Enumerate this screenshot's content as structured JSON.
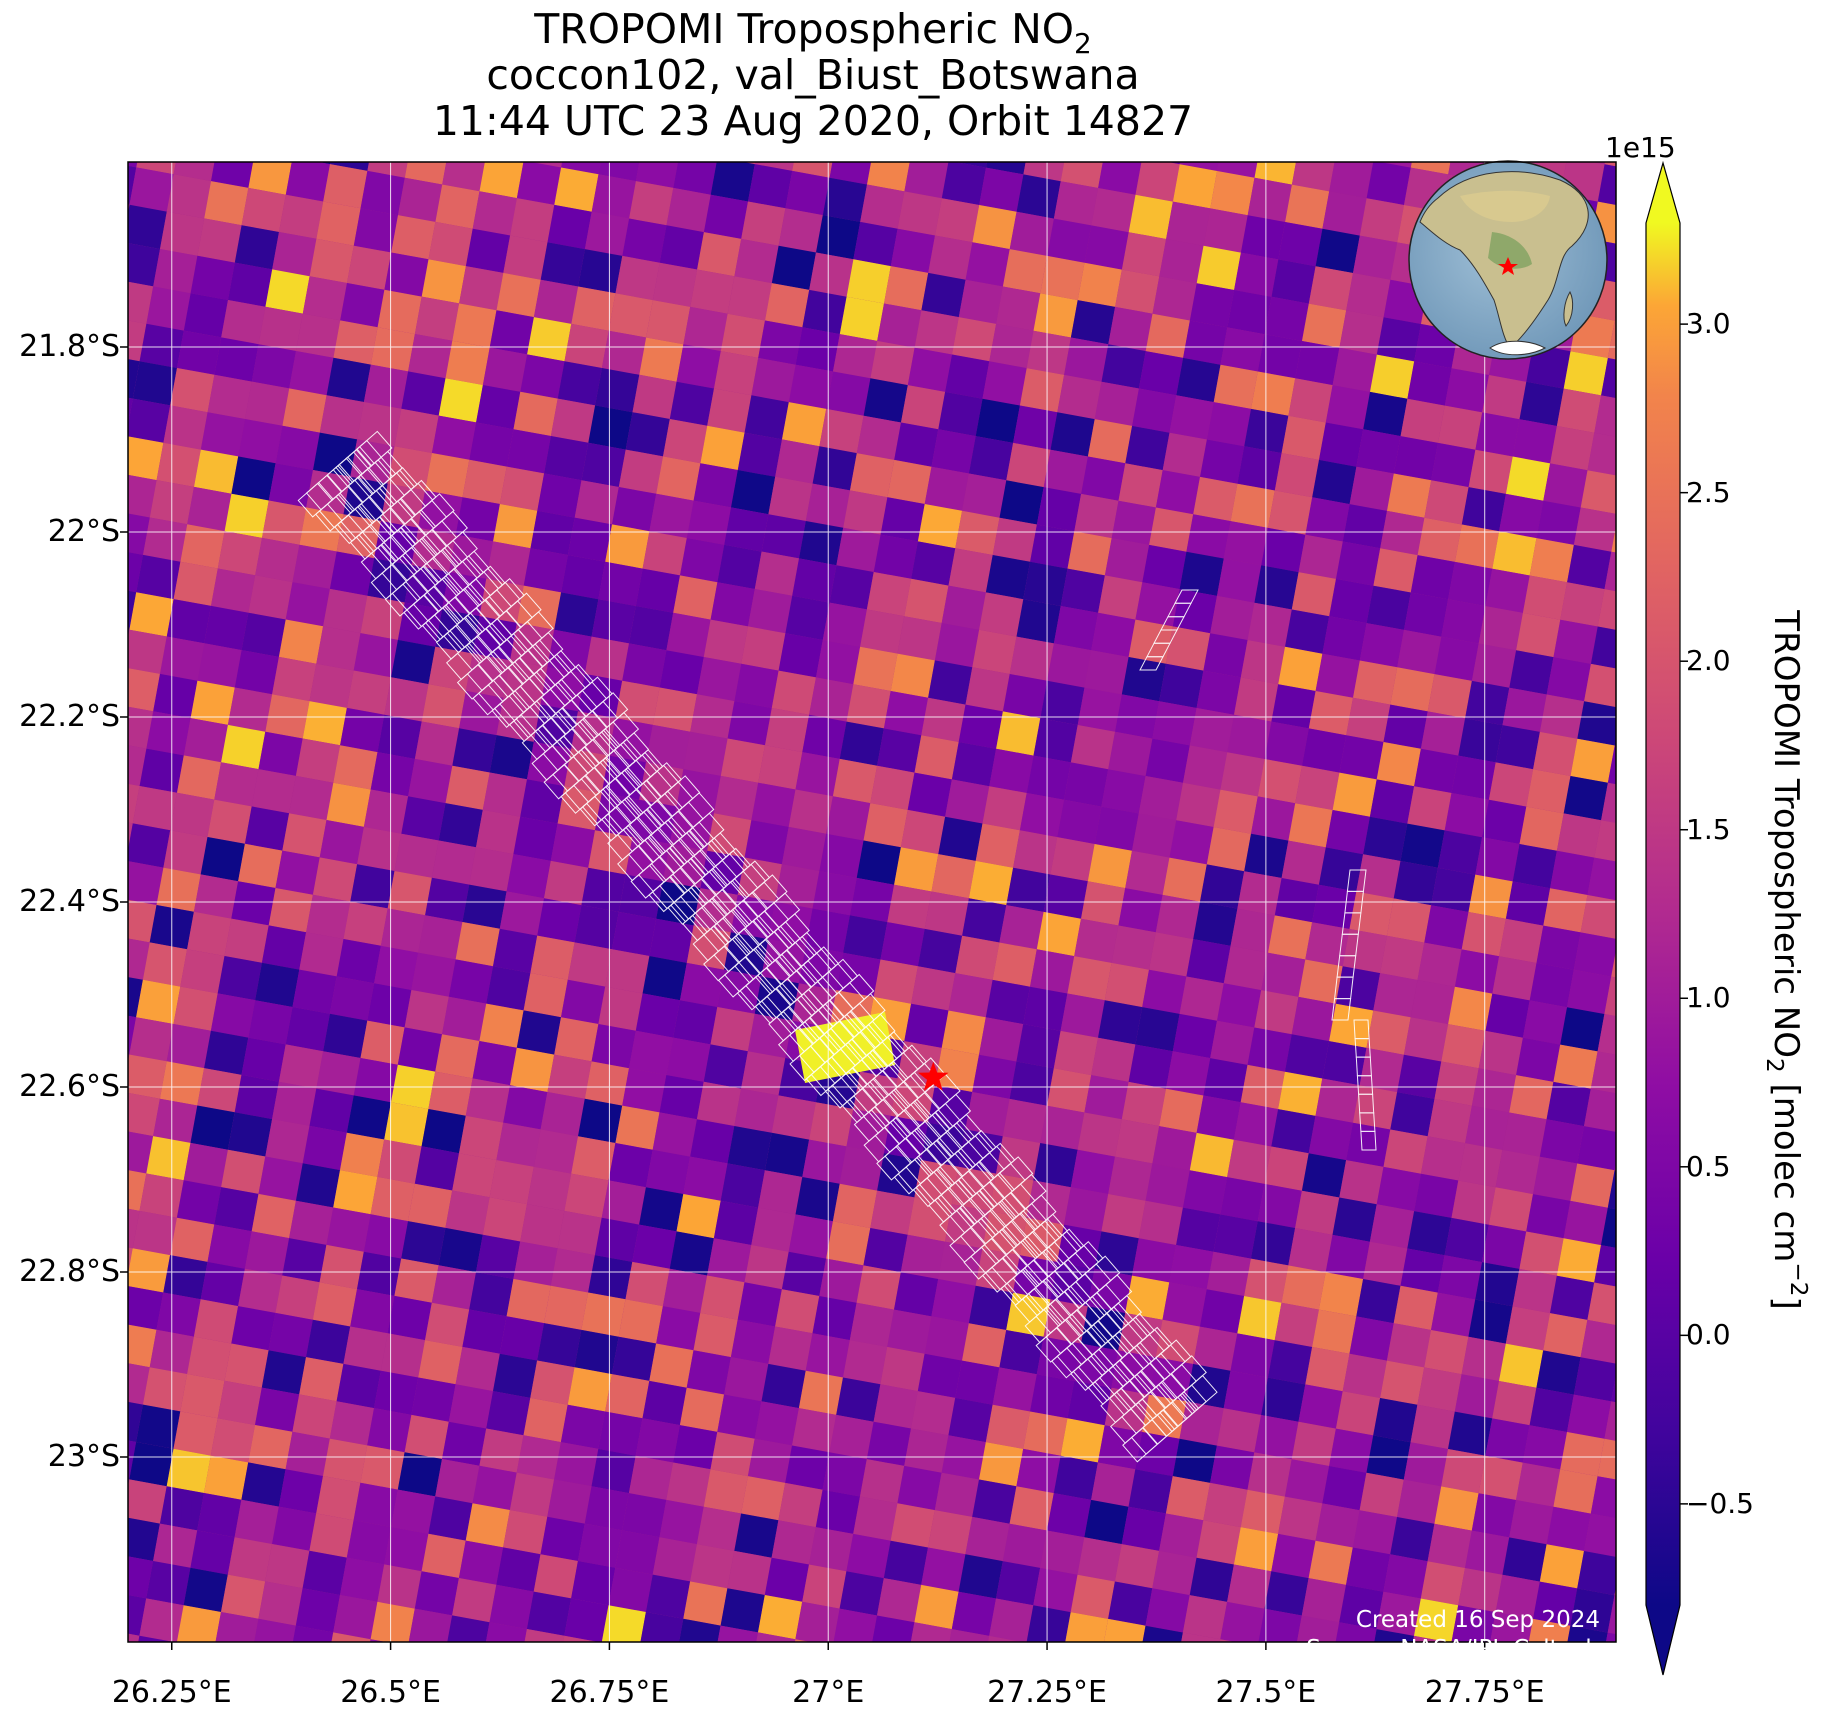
{
  "title": {
    "line1_prefix": "TROPOMI Tropospheric NO",
    "line1_sub": "2",
    "line2": "coccon102, val_Biust_Botswana",
    "line3": "11:44 UTC 23 Aug 2020, Orbit 14827"
  },
  "map": {
    "lat_labels": [
      "21.8°S",
      "22°S",
      "22.2°S",
      "22.4°S",
      "22.6°S",
      "22.8°S",
      "23°S"
    ],
    "lon_labels": [
      "26.25°E",
      "26.5°E",
      "26.75°E",
      "27°E",
      "27.25°E",
      "27.5°E",
      "27.75°E"
    ],
    "extent": {
      "lon_min": 26.2,
      "lon_max": 27.9,
      "lat_max": -21.6,
      "lat_min": -23.2
    },
    "colormap": "plasma",
    "station_marker": {
      "name": "val_Biust_Botswana",
      "lon": 27.12,
      "lat": -22.59,
      "color": "#ff0000",
      "icon": "star-icon"
    },
    "grid_lines": true,
    "inset_globe": {
      "position": "top-right",
      "icon": "globe-icon"
    }
  },
  "colorbar": {
    "exponent": "1e15",
    "ticks": [
      "3.0",
      "2.5",
      "2.0",
      "1.5",
      "1.0",
      "0.5",
      "0.0",
      "−0.5"
    ],
    "label_prefix": "TROPOMI Tropospheric NO",
    "label_sub": "2",
    "label_units": " [molec cm",
    "label_sup": "−2",
    "label_end": "]",
    "range": [
      -0.8,
      3.3
    ]
  },
  "credit": {
    "line1": "Created 16 Sep 2024",
    "line2": "Source: NASA/JPL-Caltech"
  }
}
